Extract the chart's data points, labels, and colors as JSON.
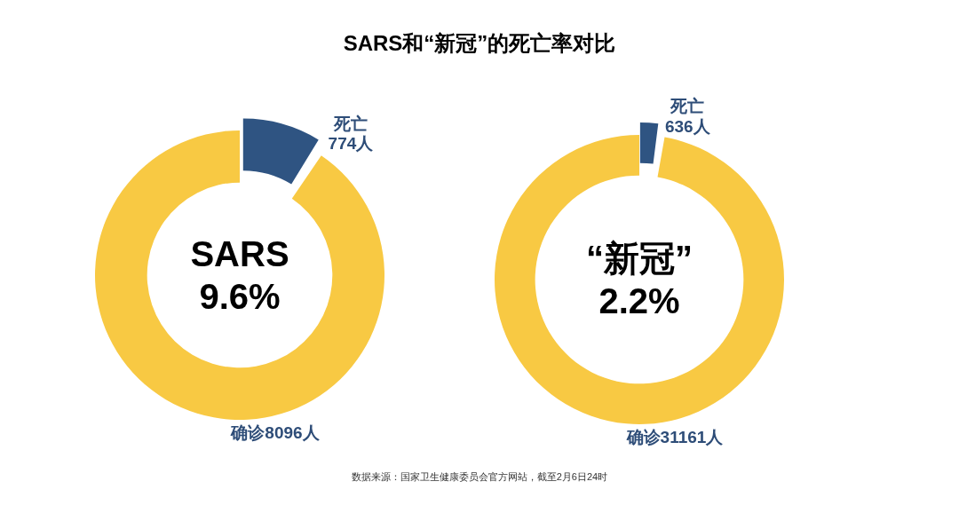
{
  "chart_data": [
    {
      "type": "donut",
      "title": "SARS和“新冠”的死亡率对比",
      "categories": [
        "死亡",
        "确诊"
      ],
      "values": [
        774,
        8096
      ],
      "value_labels": [
        "774人",
        "8096人"
      ],
      "colors": [
        "#2f5482",
        "#f8c943"
      ],
      "annotations": [
        "SARS\n9.6%"
      ]
    },
    {
      "type": "donut",
      "categories": [
        "死亡",
        "确诊"
      ],
      "values": [
        636,
        31161
      ],
      "value_labels": [
        "636人",
        "31161人"
      ],
      "colors": [
        "#2f5482",
        "#f8c943"
      ],
      "annotations": [
        "“新冠”\n2.2%",
        "数据来源：国家卫生健康委员会官方网站，截至2月6日24时"
      ]
    }
  ]
}
